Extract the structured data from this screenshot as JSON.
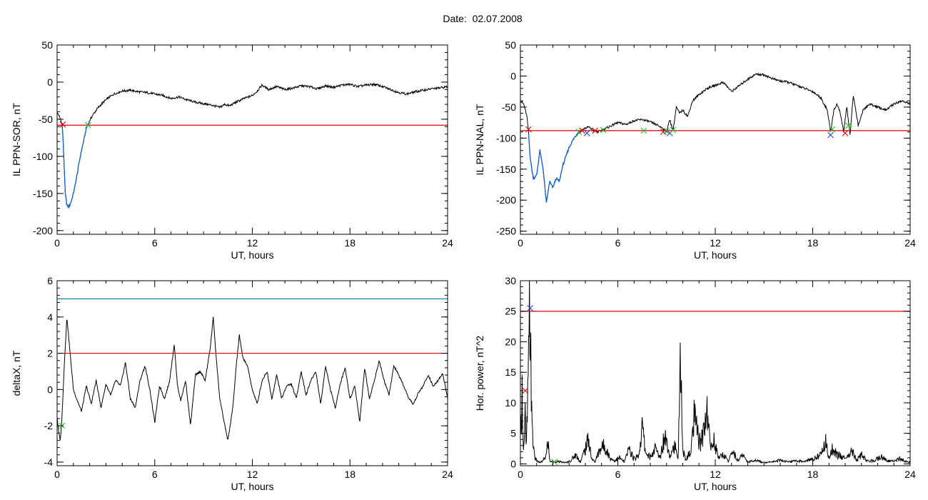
{
  "header": {
    "date_label": "Date:",
    "date_value": "02.07.2008"
  },
  "colors": {
    "trace": "#000000",
    "threshold": "#e00000",
    "upper_threshold": "#1f7fb4",
    "highlight": "#1060d0",
    "marker_red": "#e00000",
    "marker_green": "#20c020",
    "marker_blue": "#2040e0"
  },
  "chart_data": [
    {
      "type": "line",
      "id": "sor",
      "ylabel": "IL PPN-SOR, nT",
      "xlabel": "UT, hours",
      "xlim": [
        0,
        24
      ],
      "ylim": [
        -205,
        50
      ],
      "xticks": [
        0,
        6,
        12,
        18,
        24
      ],
      "yticks": [
        -200,
        -150,
        -100,
        -50,
        0,
        50
      ],
      "threshold": -58,
      "series": [
        {
          "x": [
            0,
            0.1,
            0.2,
            0.3,
            0.35,
            0.45,
            0.5,
            0.6,
            0.7,
            0.8,
            0.9,
            1.0,
            1.1,
            1.2,
            1.3,
            1.4,
            1.5,
            1.6,
            1.7,
            1.8,
            1.9,
            2.0,
            2.2,
            2.5,
            2.8,
            3.1,
            3.5,
            4.0,
            4.5,
            5.0,
            5.5,
            6.0,
            6.5,
            7.0,
            7.5,
            8.0,
            8.5,
            9.0,
            9.5,
            10.0,
            10.3,
            10.6,
            11.0,
            11.5,
            12.0,
            12.3,
            12.6,
            13.0,
            13.5,
            14.0,
            14.5,
            15.0,
            15.5,
            16.0,
            16.5,
            17.0,
            17.5,
            18.0,
            18.5,
            19.0,
            19.5,
            20.0,
            20.5,
            21.0,
            21.5,
            22.0,
            22.5,
            23.0,
            23.5,
            24.0
          ],
          "y": [
            -42,
            -44,
            -50,
            -56,
            -70,
            -120,
            -150,
            -166,
            -168,
            -165,
            -158,
            -150,
            -140,
            -128,
            -115,
            -103,
            -92,
            -82,
            -72,
            -62,
            -57,
            -52,
            -44,
            -35,
            -28,
            -22,
            -16,
            -12,
            -11,
            -13,
            -14,
            -16,
            -18,
            -22,
            -20,
            -24,
            -27,
            -29,
            -31,
            -34,
            -30,
            -32,
            -27,
            -22,
            -18,
            -12,
            -4,
            -10,
            -6,
            -10,
            -8,
            -5,
            -6,
            -9,
            -5,
            -7,
            -4,
            -3,
            -6,
            -4,
            -3,
            -6,
            -10,
            -14,
            -16,
            -13,
            -11,
            -9,
            -8,
            -6
          ]
        }
      ],
      "highlight_x": [
        0.3,
        2.0
      ],
      "markers": [
        {
          "x": 0.35,
          "y": -57,
          "color": "red"
        },
        {
          "x": 1.9,
          "y": -58,
          "color": "green"
        }
      ]
    },
    {
      "type": "line",
      "id": "nal",
      "ylabel": "IL PPN-NAL, nT",
      "xlabel": "UT, hours",
      "xlim": [
        0,
        24
      ],
      "ylim": [
        -255,
        50
      ],
      "xticks": [
        0,
        6,
        12,
        18,
        24
      ],
      "yticks": [
        -250,
        -200,
        -150,
        -100,
        -50,
        0,
        50
      ],
      "threshold": -88,
      "series": [
        {
          "x": [
            0,
            0.2,
            0.4,
            0.5,
            0.6,
            0.7,
            0.8,
            1.0,
            1.2,
            1.4,
            1.6,
            1.8,
            2.0,
            2.2,
            2.4,
            2.6,
            2.8,
            3.0,
            3.3,
            3.6,
            3.9,
            4.2,
            4.5,
            4.8,
            5.2,
            5.6,
            6.0,
            6.5,
            7.0,
            7.5,
            8.0,
            8.5,
            8.8,
            9.0,
            9.2,
            9.4,
            9.6,
            9.8,
            10.0,
            10.3,
            10.6,
            11.0,
            11.5,
            12.0,
            12.5,
            13.0,
            13.5,
            14.0,
            14.5,
            15.0,
            15.5,
            16.0,
            16.5,
            17.0,
            17.5,
            18.0,
            18.5,
            18.9,
            19.1,
            19.3,
            19.5,
            19.7,
            19.9,
            20.1,
            20.3,
            20.5,
            20.8,
            21.1,
            21.5,
            22.0,
            22.5,
            23.0,
            23.5,
            24.0
          ],
          "y": [
            -40,
            -45,
            -65,
            -90,
            -130,
            -150,
            -165,
            -160,
            -120,
            -150,
            -205,
            -170,
            -180,
            -165,
            -170,
            -145,
            -130,
            -115,
            -100,
            -90,
            -85,
            -82,
            -88,
            -90,
            -85,
            -80,
            -75,
            -78,
            -72,
            -70,
            -74,
            -80,
            -85,
            -90,
            -70,
            -88,
            -50,
            -60,
            -55,
            -65,
            -40,
            -30,
            -20,
            -15,
            -10,
            -25,
            -15,
            -5,
            3,
            2,
            -4,
            -8,
            -10,
            -15,
            -20,
            -25,
            -35,
            -55,
            -90,
            -55,
            -45,
            -60,
            -90,
            -50,
            -95,
            -30,
            -80,
            -55,
            -45,
            -50,
            -55,
            -45,
            -40,
            -45
          ]
        }
      ],
      "highlight_x": [
        0.5,
        3.7
      ],
      "markers": [
        {
          "x": 0.5,
          "y": -86,
          "color": "red"
        },
        {
          "x": 3.6,
          "y": -90,
          "color": "green"
        },
        {
          "x": 3.8,
          "y": -88,
          "color": "red"
        },
        {
          "x": 4.1,
          "y": -92,
          "color": "blue"
        },
        {
          "x": 4.6,
          "y": -88,
          "color": "red"
        },
        {
          "x": 5.1,
          "y": -87,
          "color": "green"
        },
        {
          "x": 7.6,
          "y": -88,
          "color": "green"
        },
        {
          "x": 8.8,
          "y": -90,
          "color": "red"
        },
        {
          "x": 9.0,
          "y": -89,
          "color": "green"
        },
        {
          "x": 9.2,
          "y": -92,
          "color": "blue"
        },
        {
          "x": 9.4,
          "y": -87,
          "color": "green"
        },
        {
          "x": 19.1,
          "y": -95,
          "color": "blue"
        },
        {
          "x": 19.2,
          "y": -86,
          "color": "green"
        },
        {
          "x": 20.0,
          "y": -92,
          "color": "red"
        },
        {
          "x": 20.2,
          "y": -80,
          "color": "green"
        }
      ]
    },
    {
      "type": "line",
      "id": "deltax",
      "ylabel": "deltaX, nT",
      "xlabel": "UT, hours",
      "xlim": [
        0,
        24
      ],
      "ylim": [
        -4.2,
        6
      ],
      "xticks": [
        0,
        6,
        12,
        18,
        24
      ],
      "yticks": [
        -4,
        -2,
        0,
        2,
        4,
        6
      ],
      "threshold": 2,
      "upper_threshold": 5,
      "series": [
        {
          "x": [
            0,
            0.1,
            0.2,
            0.3,
            0.45,
            0.6,
            0.8,
            1.0,
            1.2,
            1.5,
            1.8,
            2.1,
            2.4,
            2.7,
            3.0,
            3.3,
            3.6,
            3.9,
            4.2,
            4.5,
            4.8,
            5.1,
            5.4,
            5.7,
            6.0,
            6.3,
            6.6,
            6.9,
            7.2,
            7.4,
            7.6,
            7.9,
            8.2,
            8.5,
            8.8,
            9.1,
            9.4,
            9.6,
            9.8,
            10.0,
            10.2,
            10.5,
            10.8,
            11.0,
            11.2,
            11.4,
            11.7,
            12.0,
            12.3,
            12.6,
            12.9,
            13.2,
            13.5,
            13.8,
            14.1,
            14.4,
            14.7,
            15.0,
            15.3,
            15.6,
            15.9,
            16.2,
            16.5,
            16.8,
            17.1,
            17.4,
            17.7,
            18.0,
            18.3,
            18.6,
            18.9,
            19.2,
            19.5,
            19.8,
            20.1,
            20.4,
            20.7,
            21.0,
            21.3,
            21.6,
            21.9,
            22.2,
            22.5,
            22.8,
            23.1,
            23.4,
            23.7,
            24.0
          ],
          "y": [
            -1.5,
            -2.4,
            -2.8,
            -1.5,
            1.5,
            4.0,
            2.0,
            0.0,
            -0.5,
            -1.2,
            0.2,
            -0.8,
            0.5,
            -1.0,
            0.3,
            -0.3,
            0.5,
            0.2,
            1.5,
            -0.5,
            -1.0,
            0.5,
            1.3,
            0.0,
            -1.8,
            0.2,
            -0.5,
            0.4,
            2.5,
            0.2,
            -0.6,
            0.5,
            -2.0,
            0.8,
            1.0,
            0.5,
            2.2,
            4.0,
            1.5,
            -0.5,
            -1.5,
            -2.8,
            -1.0,
            1.2,
            3.0,
            1.8,
            1.3,
            0.0,
            -0.8,
            0.5,
            1.0,
            -0.5,
            0.8,
            -0.5,
            0.2,
            0.3,
            -0.5,
            1.0,
            -0.3,
            0.5,
            1.0,
            -0.8,
            1.3,
            0.0,
            -1.0,
            0.3,
            1.2,
            -0.5,
            0.2,
            -1.8,
            1.2,
            -0.5,
            0.5,
            1.6,
            0.5,
            -0.3,
            1.3,
            0.8,
            0.2,
            -0.5,
            -0.8,
            -0.2,
            0.2,
            0.8,
            0.2,
            0.5,
            0.9,
            -0.5
          ]
        }
      ],
      "markers": [
        {
          "x": 0.3,
          "y": -2.0,
          "color": "green"
        }
      ]
    },
    {
      "type": "line",
      "id": "power",
      "ylabel": "Hor. power, nT^2",
      "xlabel": "UT, hours",
      "xlim": [
        0,
        24
      ],
      "ylim": [
        -0.3,
        30
      ],
      "xticks": [
        0,
        6,
        12,
        18,
        24
      ],
      "yticks": [
        0,
        5,
        10,
        15,
        20,
        25,
        30
      ],
      "threshold": 25,
      "series": [
        {
          "x": [
            0,
            0.1,
            0.2,
            0.3,
            0.35,
            0.4,
            0.5,
            0.55,
            0.6,
            0.65,
            0.7,
            0.8,
            0.9,
            1.0,
            1.2,
            1.4,
            1.6,
            1.7,
            1.8,
            2.0,
            2.2,
            2.5,
            2.8,
            3.1,
            3.4,
            3.7,
            4.0,
            4.2,
            4.4,
            4.6,
            4.9,
            5.2,
            5.5,
            5.8,
            6.1,
            6.4,
            6.7,
            7.0,
            7.3,
            7.5,
            7.7,
            8.0,
            8.3,
            8.6,
            8.9,
            9.2,
            9.5,
            9.7,
            9.85,
            10.0,
            10.2,
            10.5,
            10.7,
            10.9,
            11.1,
            11.3,
            11.5,
            11.7,
            11.9,
            12.2,
            12.5,
            12.8,
            13.1,
            13.4,
            13.7,
            14.0,
            14.5,
            15.0,
            15.5,
            16.0,
            16.5,
            17.0,
            17.5,
            18.0,
            18.5,
            18.8,
            19.0,
            19.2,
            19.5,
            19.8,
            20.1,
            20.4,
            20.7,
            21.0,
            21.4,
            21.8,
            22.2,
            22.6,
            23.0,
            23.4,
            23.8,
            24.0
          ],
          "y": [
            4,
            12,
            2,
            8,
            2,
            6,
            14,
            22,
            25,
            18,
            6,
            3,
            1,
            0.5,
            0.2,
            0.5,
            1.5,
            4,
            0.5,
            0.3,
            0.4,
            0.3,
            0.2,
            0.5,
            1.5,
            0.3,
            2.5,
            4,
            0.8,
            0.3,
            2.5,
            3,
            1,
            0.5,
            1.0,
            0.3,
            2.5,
            0.8,
            1.5,
            6.2,
            2,
            1,
            2.5,
            1,
            5,
            1.5,
            3,
            0.5,
            16.5,
            2,
            0.8,
            2,
            7.5,
            5,
            3,
            6,
            9,
            2.5,
            4,
            1,
            1.5,
            0.5,
            2,
            0.5,
            1.5,
            0.3,
            0.6,
            0.2,
            0.4,
            0.6,
            0.3,
            0.5,
            0.4,
            0.8,
            1.5,
            3.5,
            1.0,
            2.5,
            1.5,
            1.2,
            0.8,
            2.2,
            0.5,
            1.5,
            0.4,
            0.6,
            1.2,
            0.5,
            0.4,
            0.9,
            0.3,
            0.3
          ]
        }
      ],
      "markers": [
        {
          "x": 0.3,
          "y": 12,
          "color": "red"
        },
        {
          "x": 0.6,
          "y": 25.5,
          "color": "blue"
        },
        {
          "x": 2.1,
          "y": 0.3,
          "color": "green"
        }
      ]
    }
  ]
}
